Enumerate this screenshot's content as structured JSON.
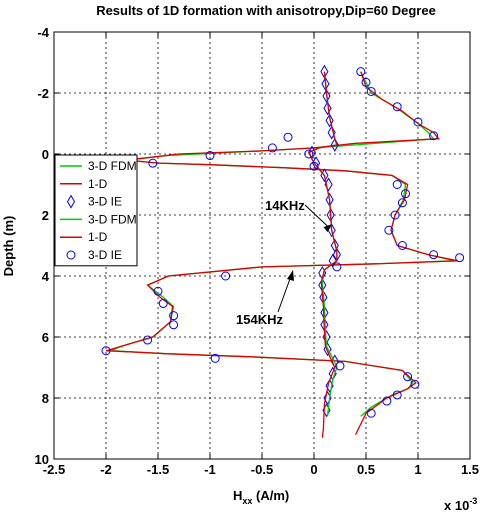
{
  "chart_data": {
    "type": "line",
    "title": "Results of 1D formation with anisotropy,Dip=60 Degree",
    "xlabel": "H",
    "xlabel_sub": "xx",
    "xlabel_unit": " (A/m)",
    "x_multiplier": "x 10",
    "x_multiplier_exp": "-3",
    "ylabel": "Depth (m)",
    "xlim": [
      -2.5,
      1.5
    ],
    "ylim": [
      -4,
      10
    ],
    "y_reversed": true,
    "grid": true,
    "legend_position": "left",
    "xticks": [
      "-2.5",
      "-2",
      "-1.5",
      "-1",
      "-0.5",
      "0",
      "0.5",
      "1",
      "1.5"
    ],
    "yticks": [
      "-4",
      "-2",
      "0",
      "2",
      "4",
      "6",
      "8",
      "10"
    ],
    "annotations": [
      {
        "text": "14KHz",
        "x": 0.14,
        "y": 2.2
      },
      {
        "text": "154KHz",
        "x": -0.2,
        "y": 5.0
      }
    ],
    "series": [
      {
        "name": "3-D FDM",
        "color": "#00cc00",
        "style": "line",
        "points": [
          [
            0.45,
            -2.7
          ],
          [
            0.55,
            -2.0
          ],
          [
            0.8,
            -1.5
          ],
          [
            1.0,
            -1.0
          ],
          [
            1.1,
            -0.7
          ],
          [
            1.15,
            -0.5
          ],
          [
            0.4,
            -0.3
          ],
          [
            0.0,
            -0.2
          ],
          [
            -0.5,
            -0.1
          ],
          [
            -1.4,
            0.05
          ],
          [
            -1.8,
            0.2
          ],
          [
            -1.5,
            0.3
          ],
          [
            -1.0,
            0.35
          ],
          [
            -0.3,
            0.45
          ],
          [
            0.3,
            0.55
          ],
          [
            0.75,
            0.7
          ],
          [
            0.88,
            1.0
          ],
          [
            0.86,
            1.5
          ],
          [
            0.78,
            2.0
          ],
          [
            0.74,
            2.5
          ],
          [
            0.8,
            3.0
          ],
          [
            1.1,
            3.3
          ],
          [
            1.35,
            3.5
          ],
          [
            0.6,
            3.6
          ],
          [
            -0.5,
            3.7
          ],
          [
            -1.4,
            4.0
          ],
          [
            -1.6,
            4.3
          ],
          [
            -1.45,
            4.7
          ],
          [
            -1.35,
            5.0
          ],
          [
            -1.38,
            5.5
          ],
          [
            -1.55,
            6.0
          ],
          [
            -1.85,
            6.3
          ],
          [
            -1.95,
            6.45
          ],
          [
            -1.4,
            6.55
          ],
          [
            -0.6,
            6.65
          ],
          [
            0.3,
            6.8
          ],
          [
            0.85,
            7.1
          ],
          [
            0.95,
            7.5
          ],
          [
            0.9,
            7.7
          ],
          [
            0.75,
            7.9
          ],
          [
            0.55,
            8.3
          ],
          [
            0.45,
            8.6
          ]
        ]
      },
      {
        "name": "1-D",
        "color": "#dd0000",
        "style": "line",
        "points": [
          [
            0.45,
            -2.7
          ],
          [
            0.5,
            -2.2
          ],
          [
            0.65,
            -1.8
          ],
          [
            0.85,
            -1.4
          ],
          [
            1.0,
            -1.0
          ],
          [
            1.15,
            -0.7
          ],
          [
            1.2,
            -0.5
          ],
          [
            0.4,
            -0.35
          ],
          [
            0.0,
            -0.2
          ],
          [
            -0.5,
            -0.1
          ],
          [
            -1.3,
            0.0
          ],
          [
            -1.8,
            0.2
          ],
          [
            -1.5,
            0.3
          ],
          [
            -1.0,
            0.35
          ],
          [
            -0.3,
            0.45
          ],
          [
            0.3,
            0.55
          ],
          [
            0.75,
            0.7
          ],
          [
            0.9,
            1.0
          ],
          [
            0.87,
            1.5
          ],
          [
            0.78,
            2.0
          ],
          [
            0.74,
            2.5
          ],
          [
            0.8,
            3.0
          ],
          [
            1.1,
            3.3
          ],
          [
            1.38,
            3.5
          ],
          [
            0.6,
            3.6
          ],
          [
            -0.5,
            3.7
          ],
          [
            -1.4,
            4.0
          ],
          [
            -1.6,
            4.3
          ],
          [
            -1.48,
            4.7
          ],
          [
            -1.36,
            5.0
          ],
          [
            -1.38,
            5.5
          ],
          [
            -1.55,
            6.0
          ],
          [
            -1.85,
            6.3
          ],
          [
            -2.0,
            6.45
          ],
          [
            -1.4,
            6.55
          ],
          [
            -0.6,
            6.65
          ],
          [
            0.3,
            6.8
          ],
          [
            0.85,
            7.1
          ],
          [
            0.98,
            7.5
          ],
          [
            0.9,
            7.7
          ],
          [
            0.7,
            8.0
          ],
          [
            0.5,
            8.5
          ],
          [
            0.4,
            9.2
          ]
        ]
      },
      {
        "name": "3-D IE",
        "color": "#0000ff",
        "style": "marker",
        "marker": "diamond",
        "points": [
          [
            0.1,
            -2.7
          ],
          [
            0.11,
            -2.3
          ],
          [
            0.12,
            -1.9
          ],
          [
            0.13,
            -1.5
          ],
          [
            0.15,
            -1.1
          ],
          [
            0.17,
            -0.7
          ],
          [
            0.2,
            -0.3
          ],
          [
            -0.02,
            -0.05
          ],
          [
            0.02,
            0.3
          ],
          [
            0.1,
            0.7
          ],
          [
            0.14,
            1.0
          ],
          [
            0.15,
            1.5
          ],
          [
            0.16,
            2.0
          ],
          [
            0.17,
            2.5
          ],
          [
            0.2,
            3.0
          ],
          [
            0.22,
            3.3
          ],
          [
            0.18,
            3.5
          ],
          [
            0.08,
            3.9
          ],
          [
            0.08,
            4.3
          ],
          [
            0.09,
            4.7
          ],
          [
            0.1,
            5.2
          ],
          [
            0.1,
            5.6
          ],
          [
            0.12,
            6.0
          ],
          [
            0.13,
            6.4
          ],
          [
            0.2,
            6.8
          ],
          [
            0.18,
            7.2
          ],
          [
            0.15,
            7.6
          ],
          [
            0.13,
            8.0
          ],
          [
            0.12,
            8.4
          ]
        ]
      },
      {
        "name": "3-D FDM",
        "color": "#00cc00",
        "style": "line",
        "points": [
          [
            0.1,
            -2.7
          ],
          [
            0.12,
            -2.0
          ],
          [
            0.15,
            -1.2
          ],
          [
            0.2,
            -0.5
          ],
          [
            0.22,
            -0.3
          ],
          [
            0.05,
            -0.2
          ],
          [
            -0.05,
            -0.05
          ],
          [
            0.0,
            0.3
          ],
          [
            0.1,
            0.7
          ],
          [
            0.15,
            1.5
          ],
          [
            0.17,
            2.5
          ],
          [
            0.22,
            3.2
          ],
          [
            0.22,
            3.5
          ],
          [
            0.1,
            3.8
          ],
          [
            0.08,
            4.2
          ],
          [
            0.1,
            5.0
          ],
          [
            0.11,
            5.8
          ],
          [
            0.12,
            6.3
          ],
          [
            0.18,
            6.7
          ],
          [
            0.22,
            7.0
          ],
          [
            0.18,
            7.4
          ],
          [
            0.15,
            8.0
          ],
          [
            0.13,
            8.6
          ]
        ]
      },
      {
        "name": "1-D",
        "color": "#dd0000",
        "style": "line",
        "points": [
          [
            0.1,
            -2.7
          ],
          [
            0.12,
            -2.0
          ],
          [
            0.15,
            -1.2
          ],
          [
            0.2,
            -0.5
          ],
          [
            0.22,
            -0.3
          ],
          [
            0.05,
            -0.2
          ],
          [
            -0.05,
            -0.05
          ],
          [
            0.0,
            0.3
          ],
          [
            0.1,
            0.7
          ],
          [
            0.15,
            1.5
          ],
          [
            0.17,
            2.5
          ],
          [
            0.22,
            3.2
          ],
          [
            0.22,
            3.5
          ],
          [
            0.1,
            3.8
          ],
          [
            0.07,
            4.2
          ],
          [
            0.09,
            5.0
          ],
          [
            0.1,
            5.8
          ],
          [
            0.11,
            6.3
          ],
          [
            0.16,
            6.7
          ],
          [
            0.2,
            7.0
          ],
          [
            0.14,
            7.5
          ],
          [
            0.1,
            8.2
          ],
          [
            0.09,
            9.0
          ],
          [
            0.08,
            9.3
          ]
        ]
      },
      {
        "name": "3-D IE",
        "color": "#0000ff",
        "style": "marker",
        "marker": "circle",
        "points": [
          [
            0.45,
            -2.7
          ],
          [
            0.5,
            -2.35
          ],
          [
            0.55,
            -2.05
          ],
          [
            0.8,
            -1.55
          ],
          [
            1.0,
            -1.05
          ],
          [
            1.15,
            -0.6
          ],
          [
            -0.25,
            -0.55
          ],
          [
            -0.4,
            -0.2
          ],
          [
            -0.05,
            0.0
          ],
          [
            -1.0,
            0.05
          ],
          [
            -1.55,
            0.3
          ],
          [
            0.0,
            0.4
          ],
          [
            0.8,
            1.0
          ],
          [
            0.88,
            1.3
          ],
          [
            0.85,
            1.6
          ],
          [
            0.78,
            2.0
          ],
          [
            0.72,
            2.5
          ],
          [
            0.85,
            3.0
          ],
          [
            1.15,
            3.3
          ],
          [
            1.4,
            3.4
          ],
          [
            0.22,
            3.7
          ],
          [
            -0.85,
            4.0
          ],
          [
            -1.5,
            4.5
          ],
          [
            -1.45,
            4.9
          ],
          [
            -1.35,
            5.3
          ],
          [
            -1.35,
            5.6
          ],
          [
            -1.6,
            6.1
          ],
          [
            -2.0,
            6.45
          ],
          [
            -0.95,
            6.7
          ],
          [
            0.25,
            6.95
          ],
          [
            0.9,
            7.3
          ],
          [
            0.97,
            7.55
          ],
          [
            0.8,
            7.9
          ],
          [
            0.7,
            8.1
          ],
          [
            0.55,
            8.5
          ]
        ]
      }
    ]
  }
}
